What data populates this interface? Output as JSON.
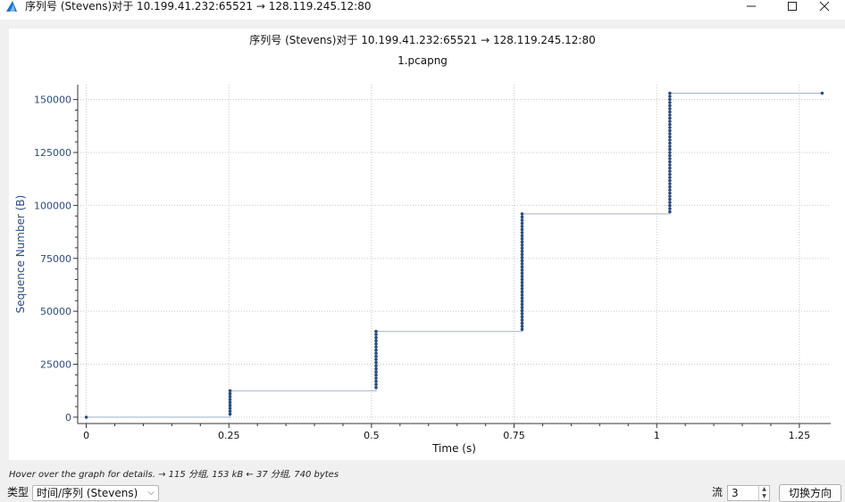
{
  "window": {
    "title": "序列号 (Stevens)对于 10.199.41.232:65521 → 128.119.245.12:80",
    "minimize_icon": "minimize-icon",
    "maximize_icon": "maximize-icon",
    "close_icon": "close-icon",
    "app_icon": "wireshark-fin-icon"
  },
  "chart_data": {
    "type": "scatter",
    "title": "序列号 (Stevens)对于 10.199.41.232:65521 → 128.119.245.12:80",
    "subtitle": "1.pcapng",
    "xlabel": "Time (s)",
    "ylabel": "Sequence Number (B)",
    "xlim": [
      -0.015,
      1.305
    ],
    "ylim": [
      -3000,
      157000
    ],
    "xticks": [
      0,
      0.25,
      0.5,
      0.75,
      1,
      1.25
    ],
    "xtick_labels": [
      "0",
      "0.25",
      "0.5",
      "0.75",
      "1",
      "1.25"
    ],
    "yticks": [
      0,
      25000,
      50000,
      75000,
      100000,
      125000,
      150000
    ],
    "ytick_labels": [
      "0",
      "25000",
      "50000",
      "75000",
      "100000",
      "125000",
      "150000"
    ],
    "grid": true,
    "series": [
      {
        "color": "#2b4d7e",
        "bursts": [
          {
            "x": 0.0,
            "y_start": 0,
            "y_end": 0
          },
          {
            "x": 0.252,
            "y_start": 1460,
            "y_end": 12500
          },
          {
            "x": 0.508,
            "y_start": 14000,
            "y_end": 40500
          },
          {
            "x": 0.764,
            "y_start": 41500,
            "y_end": 96000
          },
          {
            "x": 1.023,
            "y_start": 97000,
            "y_end": 153000
          },
          {
            "x": 1.29,
            "y_start": 153000,
            "y_end": 153000
          }
        ],
        "step_line": [
          [
            0.0,
            0
          ],
          [
            0.252,
            0
          ],
          [
            0.252,
            12500
          ],
          [
            0.508,
            12500
          ],
          [
            0.508,
            40500
          ],
          [
            0.764,
            40500
          ],
          [
            0.764,
            96000
          ],
          [
            1.023,
            96000
          ],
          [
            1.023,
            153000
          ],
          [
            1.29,
            153000
          ]
        ],
        "line_color": "#9fb3c8"
      }
    ]
  },
  "status": {
    "hint": "Hover over the graph for details. → 115 分组, 153 kB ← 37 分组, 740 bytes"
  },
  "controls": {
    "type_label": "类型",
    "type_value": "时间/序列 (Stevens)",
    "stream_label": "流",
    "stream_value": "3",
    "switch_button": "切换方向"
  }
}
